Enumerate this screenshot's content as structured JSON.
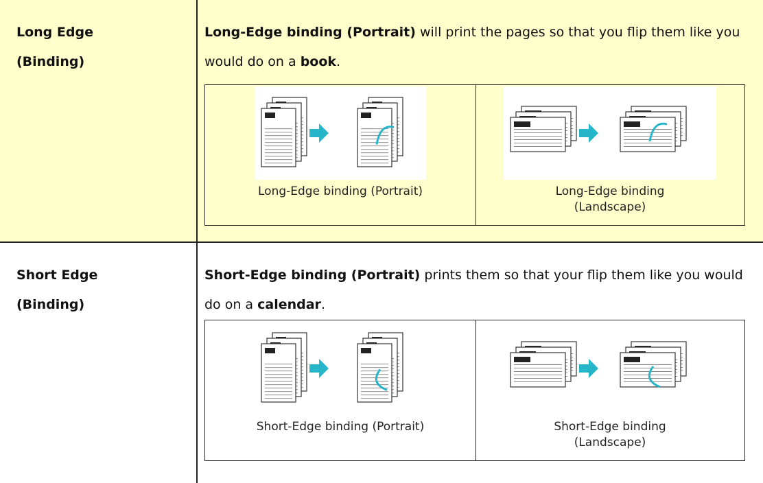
{
  "rows": [
    {
      "label": [
        "Long Edge",
        "(Binding)"
      ],
      "description": [
        {
          "text": "Long-Edge binding (Portrait)",
          "bold": true
        },
        {
          "text": " will print the pages so that you flip them like you would do on a ",
          "bold": false
        },
        {
          "text": "book",
          "bold": true
        },
        {
          "text": ".",
          "bold": false
        }
      ],
      "figures": [
        {
          "caption": [
            "Long-Edge binding (Portrait)"
          ]
        },
        {
          "caption": [
            "Long-Edge binding",
            "(Landscape)"
          ]
        }
      ]
    },
    {
      "label": [
        "Short Edge",
        "(Binding)"
      ],
      "description": [
        {
          "text": "Short-Edge binding (Portrait)",
          "bold": true
        },
        {
          "text": " prints them so that your flip them like you would do on a ",
          "bold": false
        },
        {
          "text": "calendar",
          "bold": true
        },
        {
          "text": ".",
          "bold": false
        }
      ],
      "figures": [
        {
          "caption": [
            "Short-Edge binding (Portrait)"
          ]
        },
        {
          "caption": [
            "Short-Edge binding",
            "(Landscape)"
          ]
        }
      ]
    }
  ]
}
